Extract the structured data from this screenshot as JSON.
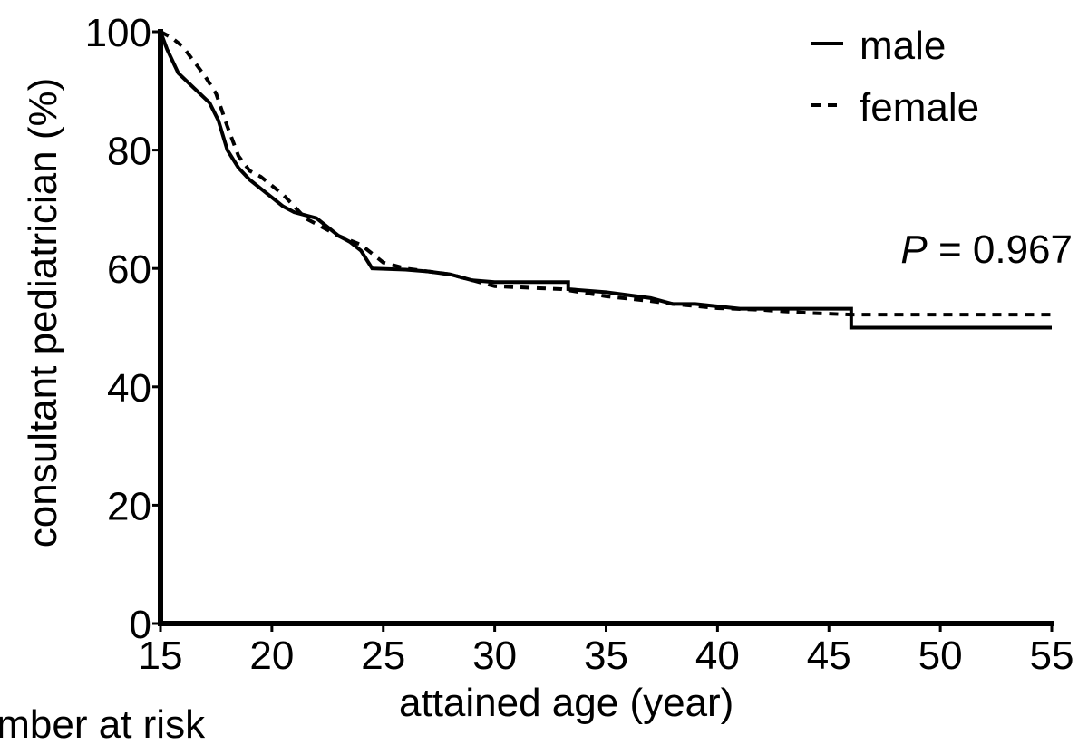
{
  "chart_data": {
    "type": "line",
    "x_label": "attained age (year)",
    "y_label": "consultant pediatrician (%)",
    "annotation_symbol": "P",
    "annotation_text": "= 0.967",
    "footer": "Number at risk",
    "xlim": [
      15,
      55
    ],
    "xticks": [
      15,
      20,
      25,
      30,
      35,
      40,
      45,
      50,
      55
    ],
    "ylim": [
      0,
      100
    ],
    "yticks": [
      0,
      20,
      40,
      60,
      80,
      100
    ],
    "legend": "top-right",
    "series": [
      {
        "name": "male",
        "color": "#000000",
        "dash": "solid",
        "x": [
          15,
          15.3,
          15.8,
          16.5,
          17.2,
          17.6,
          18,
          18.5,
          19,
          19.5,
          20,
          20.5,
          21,
          22,
          22.5,
          23,
          23.5,
          24,
          24.5,
          26,
          27,
          28,
          29,
          30,
          33.3,
          33.3,
          35,
          36,
          37,
          38,
          39,
          40,
          41,
          46,
          46,
          55
        ],
        "values": [
          100,
          97,
          93,
          90.5,
          88,
          85,
          80,
          77,
          75,
          73.5,
          72,
          70.5,
          69.5,
          68.5,
          67,
          65.5,
          64.5,
          63,
          60,
          59.8,
          59.5,
          59,
          58,
          57.7,
          57.7,
          56.5,
          56,
          55.5,
          55,
          54,
          54,
          53.6,
          53.2,
          53.2,
          50,
          50
        ]
      },
      {
        "name": "female",
        "color": "#000000",
        "dash": "dashed",
        "x": [
          15,
          15.5,
          16,
          16.5,
          17,
          17.5,
          18,
          18.5,
          19,
          19.5,
          20,
          20.5,
          21,
          21.5,
          22,
          22.5,
          23,
          24,
          24.5,
          25,
          26,
          28,
          30,
          33,
          35,
          37,
          38,
          40,
          42,
          44,
          46,
          55
        ],
        "values": [
          100,
          99,
          97.5,
          95,
          92.5,
          89.5,
          84,
          79,
          76.5,
          75.5,
          74,
          72.5,
          70.5,
          68.5,
          67.5,
          66.5,
          65.5,
          64,
          62.5,
          61,
          60,
          59,
          57,
          56.5,
          55.3,
          54.5,
          54,
          53.3,
          53,
          52.5,
          52.2,
          52.2
        ]
      }
    ]
  }
}
